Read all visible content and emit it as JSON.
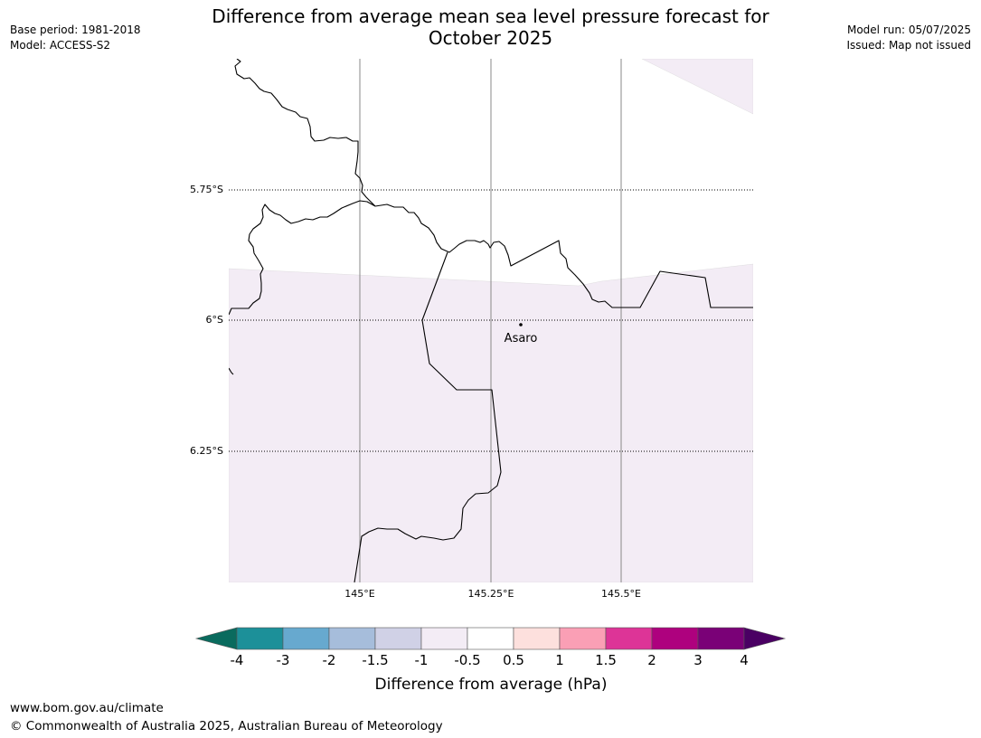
{
  "header": {
    "base_period": "Base period: 1981-2018",
    "model": "Model: ACCESS-S2",
    "title_line1": "Difference from average mean sea level pressure forecast for",
    "title_line2": "October 2025",
    "model_run": "Model run: 05/07/2025",
    "issued": "Issued: Map not issued"
  },
  "map": {
    "lat_labels": [
      "5.75°S",
      "6°S",
      "6.25°S"
    ],
    "lon_labels": [
      "145°E",
      "145.25°E",
      "145.5°E"
    ],
    "place": {
      "name": "Asaro"
    },
    "colors": {
      "anomaly_fill": "#f3ecf5",
      "boundary": "#000000",
      "meridian": "#888888"
    }
  },
  "colorbar": {
    "title": "Difference from average (hPa)",
    "tick_labels": [
      "-4",
      "-3",
      "-2",
      "-1.5",
      "-1",
      "-0.5",
      "0.5",
      "1",
      "1.5",
      "2",
      "3",
      "4"
    ],
    "low_extend_color": "#0a6b5e",
    "high_extend_color": "#4a0063",
    "bin_colors": [
      "#1c9099",
      "#67a9cf",
      "#a6bddb",
      "#d0d1e6",
      "#f3ecf5",
      "#ffffff",
      "#fde0dd",
      "#fa9fb5",
      "#dd3497",
      "#ae017e",
      "#7a0177"
    ]
  },
  "footer": {
    "url": "www.bom.gov.au/climate",
    "copyright": "© Commonwealth of Australia 2025, Australian Bureau of Meteorology"
  }
}
